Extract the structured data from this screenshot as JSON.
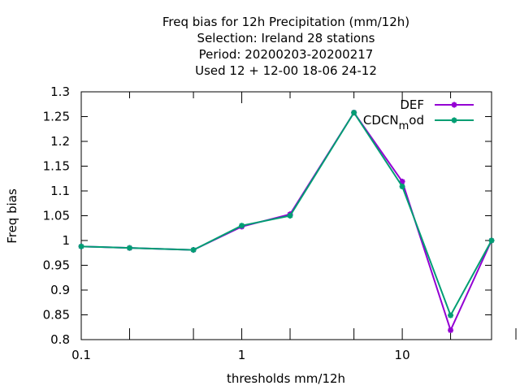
{
  "chart_data": {
    "type": "line",
    "title_lines": [
      "Freq bias  for 12h Precipitation (mm/12h)",
      "Selection: Ireland     28 stations",
      "Period: 20200203-20200217",
      "Used  12 + 12-00 18-06 24-12"
    ],
    "xlabel": "thresholds mm/12h",
    "ylabel": "Freq bias",
    "x_scale": "log",
    "xlim": [
      0.1,
      36
    ],
    "ylim": [
      0.8,
      1.3
    ],
    "x_ticks": [
      {
        "value": 0.1,
        "label": "0.1"
      },
      {
        "value": 1,
        "label": "1"
      },
      {
        "value": 10,
        "label": "10"
      }
    ],
    "x_minor_ticks": [
      0.2,
      0.5,
      2,
      5,
      20
    ],
    "y_ticks": [
      {
        "value": 0.8,
        "label": "0.8"
      },
      {
        "value": 0.85,
        "label": "0.85"
      },
      {
        "value": 0.9,
        "label": "0.9"
      },
      {
        "value": 0.95,
        "label": "0.95"
      },
      {
        "value": 1.0,
        "label": "1"
      },
      {
        "value": 1.05,
        "label": "1.05"
      },
      {
        "value": 1.1,
        "label": "1.1"
      },
      {
        "value": 1.15,
        "label": "1.15"
      },
      {
        "value": 1.2,
        "label": "1.2"
      },
      {
        "value": 1.25,
        "label": "1.25"
      },
      {
        "value": 1.3,
        "label": "1.3"
      }
    ],
    "legend_position": "top-right",
    "series": [
      {
        "name": "DEF",
        "color": "#9400d3",
        "points": [
          {
            "x": 0.1,
            "y": 0.988
          },
          {
            "x": 0.2,
            "y": 0.985
          },
          {
            "x": 0.5,
            "y": 0.981
          },
          {
            "x": 1,
            "y": 1.028
          },
          {
            "x": 2,
            "y": 1.053
          },
          {
            "x": 5,
            "y": 1.258
          },
          {
            "x": 10,
            "y": 1.119
          },
          {
            "x": 20,
            "y": 0.819
          },
          {
            "x": 36,
            "y": 1.0
          }
        ]
      },
      {
        "name": "CDCN_mod",
        "legend_text": "CDCN",
        "legend_subscript": "m",
        "legend_suffix": "od",
        "color": "#009e73",
        "points": [
          {
            "x": 0.1,
            "y": 0.988
          },
          {
            "x": 0.2,
            "y": 0.985
          },
          {
            "x": 0.5,
            "y": 0.981
          },
          {
            "x": 1,
            "y": 1.03
          },
          {
            "x": 2,
            "y": 1.05
          },
          {
            "x": 5,
            "y": 1.258
          },
          {
            "x": 10,
            "y": 1.109
          },
          {
            "x": 20,
            "y": 0.849
          },
          {
            "x": 36,
            "y": 1.0
          }
        ]
      }
    ]
  }
}
